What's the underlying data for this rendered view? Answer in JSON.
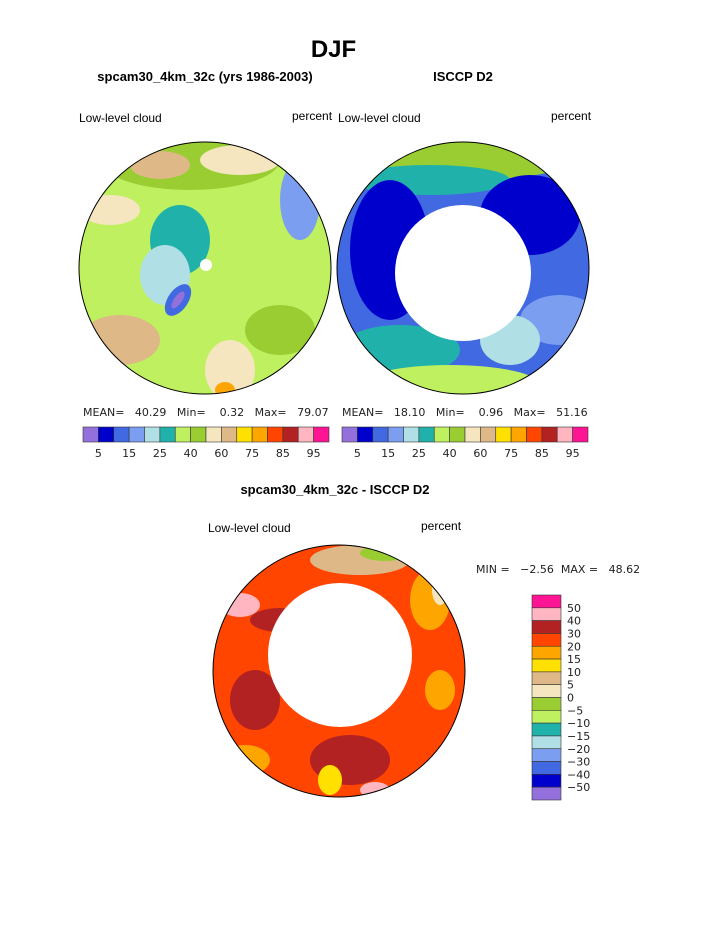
{
  "chart_data": {
    "type": "heatmap",
    "title": "DJF",
    "colors": [
      "#9370DB",
      "#0000CD",
      "#4169E1",
      "#7B9EF0",
      "#B0E0E6",
      "#20B2AA",
      "#BFF060",
      "#9ACD32",
      "#F5E6C0",
      "#DEB887",
      "#FFE000",
      "#FFA500",
      "#FF4500",
      "#B22222",
      "#FFB6C1",
      "#FF1493"
    ],
    "panels": [
      {
        "subtitle": "spcam30_4km_32c (yrs 1986-2003)",
        "left_label": "Low-level cloud",
        "right_label": "percent",
        "stats": {
          "mean_label": "MEAN=",
          "mean": "40.29",
          "min_label": "Min=",
          "min": "0.32",
          "max_label": "Max=",
          "max": "79.07"
        },
        "colorbar_labels": [
          "5",
          "15",
          "25",
          "40",
          "60",
          "75",
          "85",
          "95"
        ]
      },
      {
        "subtitle": "ISCCP D2",
        "left_label": "Low-level cloud",
        "right_label": "percent",
        "stats": {
          "mean_label": "MEAN=",
          "mean": "18.10",
          "min_label": "Min=",
          "min": "0.96",
          "max_label": "Max=",
          "max": "51.16"
        },
        "colorbar_labels": [
          "5",
          "15",
          "25",
          "40",
          "60",
          "75",
          "85",
          "95"
        ]
      },
      {
        "subtitle": "spcam30_4km_32c - ISCCP D2",
        "left_label": "Low-level cloud",
        "right_label": "percent",
        "stats": {
          "text": "MIN =   −2.56  MAX =   48.62"
        },
        "colorbar_labels": [
          "50",
          "40",
          "30",
          "20",
          "15",
          "10",
          "5",
          "0",
          "−5",
          "−10",
          "−15",
          "−20",
          "−30",
          "−40",
          "−50"
        ]
      }
    ]
  }
}
